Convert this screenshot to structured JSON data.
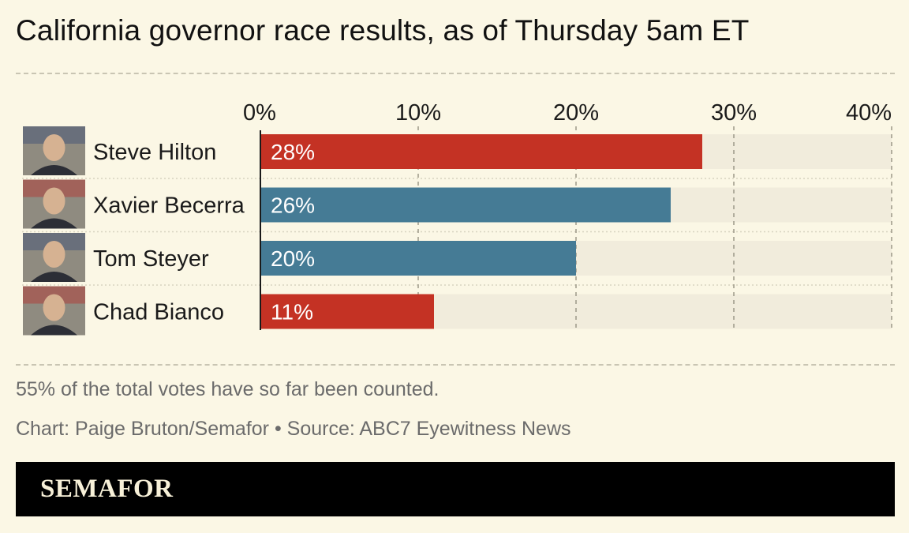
{
  "title": "California governor race results, as of Thursday 5am ET",
  "note": "55% of the total votes have so far been counted.",
  "credit": "Chart: Paige Bruton/Semafor • Source: ABC7 Eyewitness News",
  "brand": "SEMAFOR",
  "colors": {
    "background": "#fbf7e5",
    "track": "#f1ecdc",
    "red": "#c43224",
    "blue": "#457b95",
    "footer": "#000000"
  },
  "chart_data": {
    "type": "bar",
    "orientation": "horizontal",
    "categories": [
      "Steve Hilton",
      "Xavier Becerra",
      "Tom Steyer",
      "Chad Bianco"
    ],
    "values": [
      28,
      26,
      20,
      11
    ],
    "value_labels": [
      "28%",
      "26%",
      "20%",
      "11%"
    ],
    "bar_colors": [
      "#c43224",
      "#457b95",
      "#457b95",
      "#c43224"
    ],
    "xlim": [
      0,
      40
    ],
    "xticks": [
      0,
      10,
      20,
      30,
      40
    ],
    "xtick_labels": [
      "0%",
      "10%",
      "20%",
      "30%",
      "40%"
    ],
    "grid": true,
    "axis_position": "top",
    "avatars": [
      "photo",
      "photo",
      "photo",
      "photo"
    ]
  }
}
